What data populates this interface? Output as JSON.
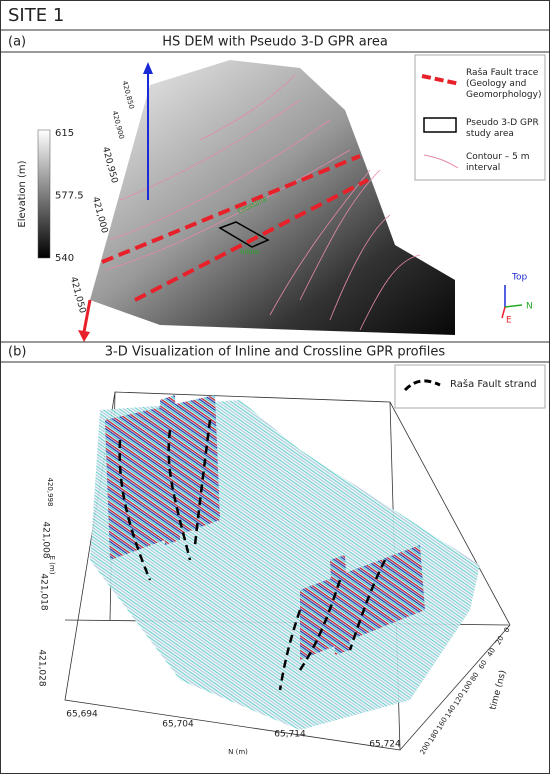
{
  "header": {
    "title": "SITE 1"
  },
  "panel_a": {
    "label": "(a)",
    "title": "HS DEM with Pseudo 3-D GPR area",
    "colorbar": {
      "label": "Elevation (m)",
      "ticks": [
        "615",
        "577.5",
        "540"
      ]
    },
    "axis_labels": [
      "420,850",
      "420,900",
      "420,950",
      "421,000",
      "421,050"
    ],
    "map_labels": [
      "Crossline",
      "Inline"
    ],
    "legend": [
      "Raša Fault trace (Geology and Geomorphology)",
      "Pseudo 3-D GPR study area",
      "Contour – 5 m interval"
    ],
    "orientation": [
      "Top",
      "N",
      "E"
    ]
  },
  "panel_b": {
    "label": "(b)",
    "title": "3-D Visualization of Inline and Crossline GPR profiles",
    "legend": [
      "Raša Fault strand"
    ],
    "n_axis": {
      "label": "N (m)",
      "ticks": [
        "65,694",
        "65,704",
        "65,714",
        "65,724"
      ]
    },
    "time_axis": {
      "label": "time (ns)",
      "ticks": [
        "0",
        "20",
        "40",
        "60",
        "80",
        "100",
        "120",
        "140",
        "160",
        "180",
        "200"
      ]
    },
    "e_axis": {
      "label": "E (m)",
      "ticks": [
        "420,998",
        "421,008",
        "421,018",
        "421,028"
      ]
    }
  }
}
